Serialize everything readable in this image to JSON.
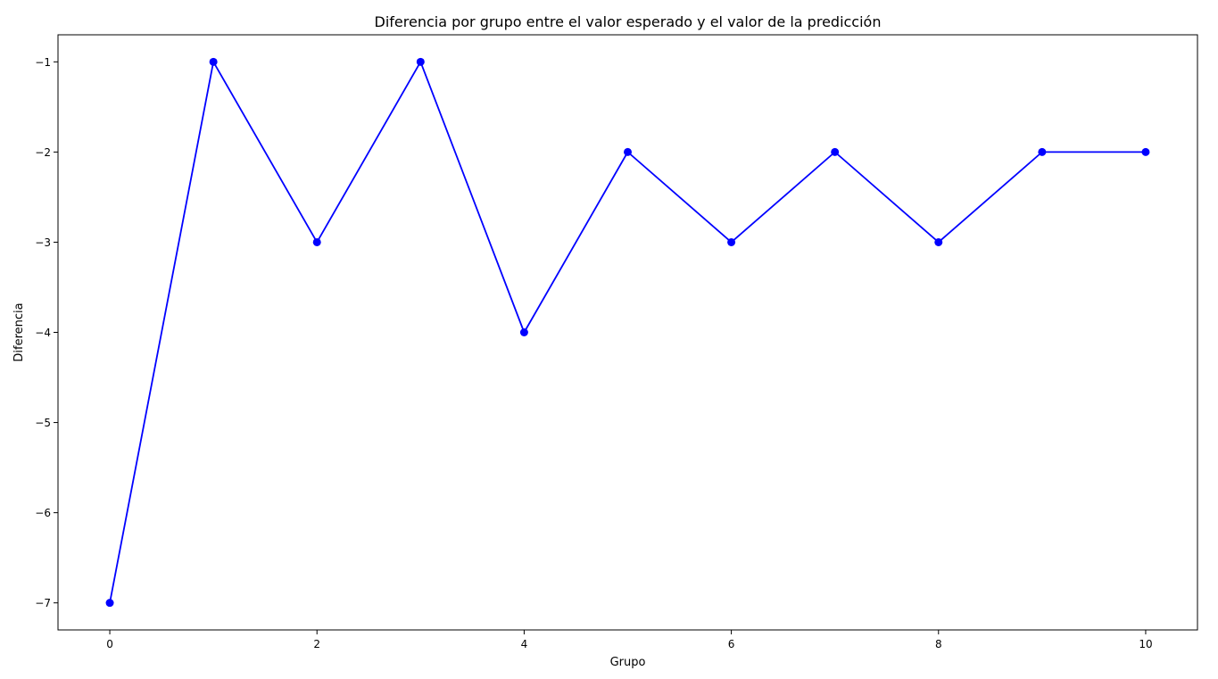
{
  "chart_data": {
    "type": "line",
    "title": "Diferencia por grupo entre el valor esperado y el valor de la predicción",
    "xlabel": "Grupo",
    "ylabel": "Diferencia",
    "x": [
      0,
      1,
      2,
      3,
      4,
      5,
      6,
      7,
      8,
      9,
      10
    ],
    "series": [
      {
        "values": [
          -7,
          -1,
          -3,
          -1,
          -4,
          -2,
          -3,
          -2,
          -3,
          -2,
          -2
        ],
        "color": "#0000ff",
        "marker": "circle"
      }
    ],
    "xlim": [
      -0.5,
      10.5
    ],
    "ylim": [
      -7.3,
      -0.7
    ],
    "xticks": [
      0,
      2,
      4,
      6,
      8,
      10
    ],
    "xtick_labels": [
      "0",
      "2",
      "4",
      "6",
      "8",
      "10"
    ],
    "yticks": [
      -1,
      -2,
      -3,
      -4,
      -5,
      -6,
      -7
    ],
    "ytick_labels": [
      "−1",
      "−2",
      "−3",
      "−4",
      "−5",
      "−6",
      "−7"
    ],
    "grid": false,
    "legend": false
  }
}
